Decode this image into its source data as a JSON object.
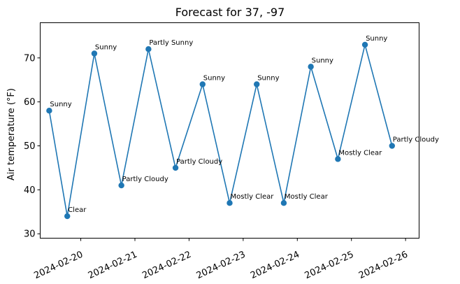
{
  "chart_data": {
    "type": "line",
    "title": "Forecast for 37, -97",
    "xlabel": "",
    "ylabel": "Air temperature (°F)",
    "xlim": [
      "2024-02-19 06:00",
      "2024-02-26 06:00"
    ],
    "ylim": [
      29,
      78
    ],
    "x_tick_labels": [
      "2024-02-20",
      "2024-02-21",
      "2024-02-22",
      "2024-02-23",
      "2024-02-24",
      "2024-02-25",
      "2024-02-26"
    ],
    "x_ticks": [
      "2024-02-20",
      "2024-02-21",
      "2024-02-22",
      "2024-02-23",
      "2024-02-24",
      "2024-02-25",
      "2024-02-26"
    ],
    "y_tick_labels": [
      "30",
      "40",
      "50",
      "60",
      "70"
    ],
    "y_ticks": [
      30,
      40,
      50,
      60,
      70
    ],
    "grid": false,
    "color": "#1f77b4",
    "series": [
      {
        "points": [
          {
            "x": "2024-02-19 10:00",
            "y": 58,
            "label": "Sunny"
          },
          {
            "x": "2024-02-19 18:00",
            "y": 34,
            "label": "Clear"
          },
          {
            "x": "2024-02-20 06:00",
            "y": 71,
            "label": "Sunny"
          },
          {
            "x": "2024-02-20 18:00",
            "y": 41,
            "label": "Partly Cloudy"
          },
          {
            "x": "2024-02-21 06:00",
            "y": 72,
            "label": "Partly Sunny"
          },
          {
            "x": "2024-02-21 18:00",
            "y": 45,
            "label": "Partly Cloudy"
          },
          {
            "x": "2024-02-22 06:00",
            "y": 64,
            "label": "Sunny"
          },
          {
            "x": "2024-02-22 18:00",
            "y": 37,
            "label": "Mostly Clear"
          },
          {
            "x": "2024-02-23 06:00",
            "y": 64,
            "label": "Sunny"
          },
          {
            "x": "2024-02-23 18:00",
            "y": 37,
            "label": "Mostly Clear"
          },
          {
            "x": "2024-02-24 06:00",
            "y": 68,
            "label": "Sunny"
          },
          {
            "x": "2024-02-24 18:00",
            "y": 47,
            "label": "Mostly Clear"
          },
          {
            "x": "2024-02-25 06:00",
            "y": 73,
            "label": "Sunny"
          },
          {
            "x": "2024-02-25 18:00",
            "y": 50,
            "label": "Partly Cloudy"
          }
        ]
      }
    ]
  }
}
